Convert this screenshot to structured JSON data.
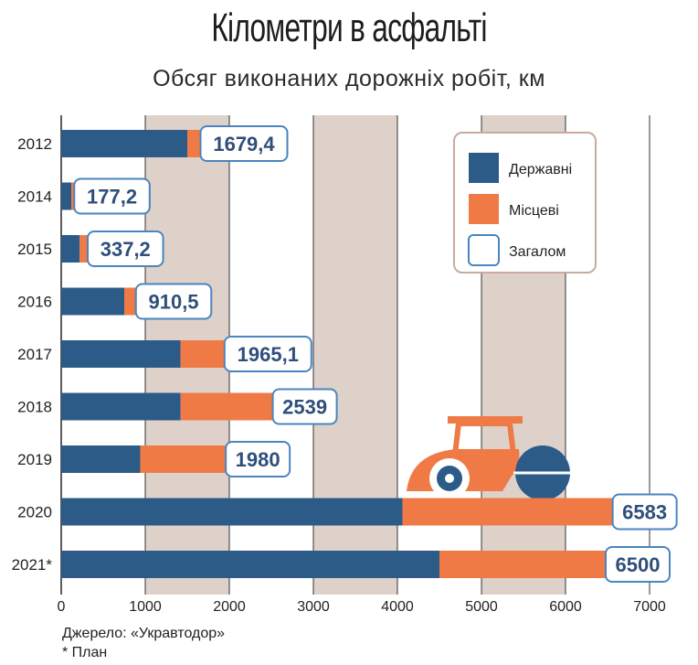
{
  "title": "Кілометри в асфальті",
  "subtitle": "Обсяг виконаних дорожніх робіт, км",
  "source": "Джерело: «Укравтодор»",
  "note": "* План",
  "colors": {
    "state": "#2d5b88",
    "local": "#ef7a45",
    "band": "#ddd1ca",
    "label_border": "#4a85bf",
    "label_text": "#2f4f7a"
  },
  "chart_data": {
    "type": "bar",
    "orientation": "horizontal",
    "stacked": true,
    "categories": [
      "2012",
      "2014",
      "2015",
      "2016",
      "2017",
      "2018",
      "2019",
      "2020",
      "2021*"
    ],
    "series": [
      {
        "name": "Державні",
        "values": [
          1500,
          120,
          220,
          750,
          1420,
          1420,
          940,
          4060,
          4500
        ]
      },
      {
        "name": "Місцеві",
        "values": [
          179.4,
          57.2,
          117.2,
          160.5,
          545.1,
          1119,
          1040,
          2523,
          2000
        ]
      }
    ],
    "totals": [
      "1679,4",
      "177,2",
      "337,2",
      "910,5",
      "1965,1",
      "2539",
      "1980",
      "6583",
      "6500"
    ],
    "total_series_name": "Загалом",
    "xlim": [
      0,
      7000
    ],
    "xticks": [
      "0",
      "1000",
      "2000",
      "3000",
      "4000",
      "5000",
      "6000",
      "7000"
    ],
    "legend_position": "top-right"
  }
}
